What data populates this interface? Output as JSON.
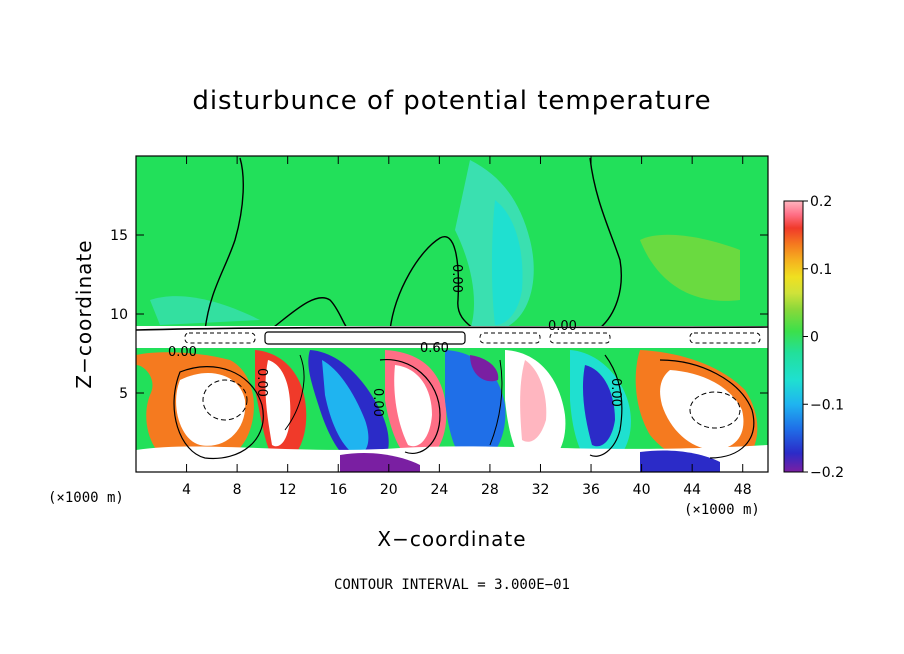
{
  "chart_data": {
    "type": "heatmap",
    "title": "disturbunce of potential temperature",
    "xlabel": "X−coordinate",
    "ylabel": "Z−coordinate",
    "x_unit_left": "(×1000 m)",
    "x_unit_right": "(×1000 m)",
    "xlim": [
      0,
      50
    ],
    "ylim": [
      0,
      20
    ],
    "x_ticks": [
      4,
      8,
      12,
      16,
      20,
      24,
      28,
      32,
      36,
      40,
      44,
      48
    ],
    "x_tick_labels": [
      "4",
      "8",
      "12",
      "16",
      "20",
      "24",
      "28",
      "32",
      "36",
      "40",
      "44",
      "48"
    ],
    "y_ticks": [
      5,
      10,
      15
    ],
    "y_tick_labels": [
      "5",
      "10",
      "15"
    ],
    "colorbar": {
      "range": [
        -0.2,
        0.2
      ],
      "ticks": [
        0.2,
        0.1,
        0,
        -0.1,
        -0.2
      ],
      "tick_labels": [
        "0.2",
        "0.1",
        "0",
        "−0.1",
        "−0.2"
      ],
      "colors": [
        "#7a1fa2",
        "#2b2bc8",
        "#1f6fe8",
        "#1fb4f0",
        "#1fe0d0",
        "#22e09a",
        "#3ce04a",
        "#8ad83a",
        "#cfe23a",
        "#f0e020",
        "#f5b21f",
        "#f57a1f",
        "#f03a2a",
        "#ff6f86",
        "#ffb6c0"
      ]
    },
    "contour_labels": [
      "0.00",
      "0.00",
      "0.00",
      "0.60",
      "0.00",
      "0.00",
      "0.00"
    ],
    "contour_interval": "CONTOUR INTERVAL = 3.000E−01",
    "grid": false
  },
  "colors": {
    "upper_field": "#22e05a",
    "cool_patch": "#1fe0d0",
    "turbulent_white": "#ffffff",
    "contour_line": "#000000"
  }
}
